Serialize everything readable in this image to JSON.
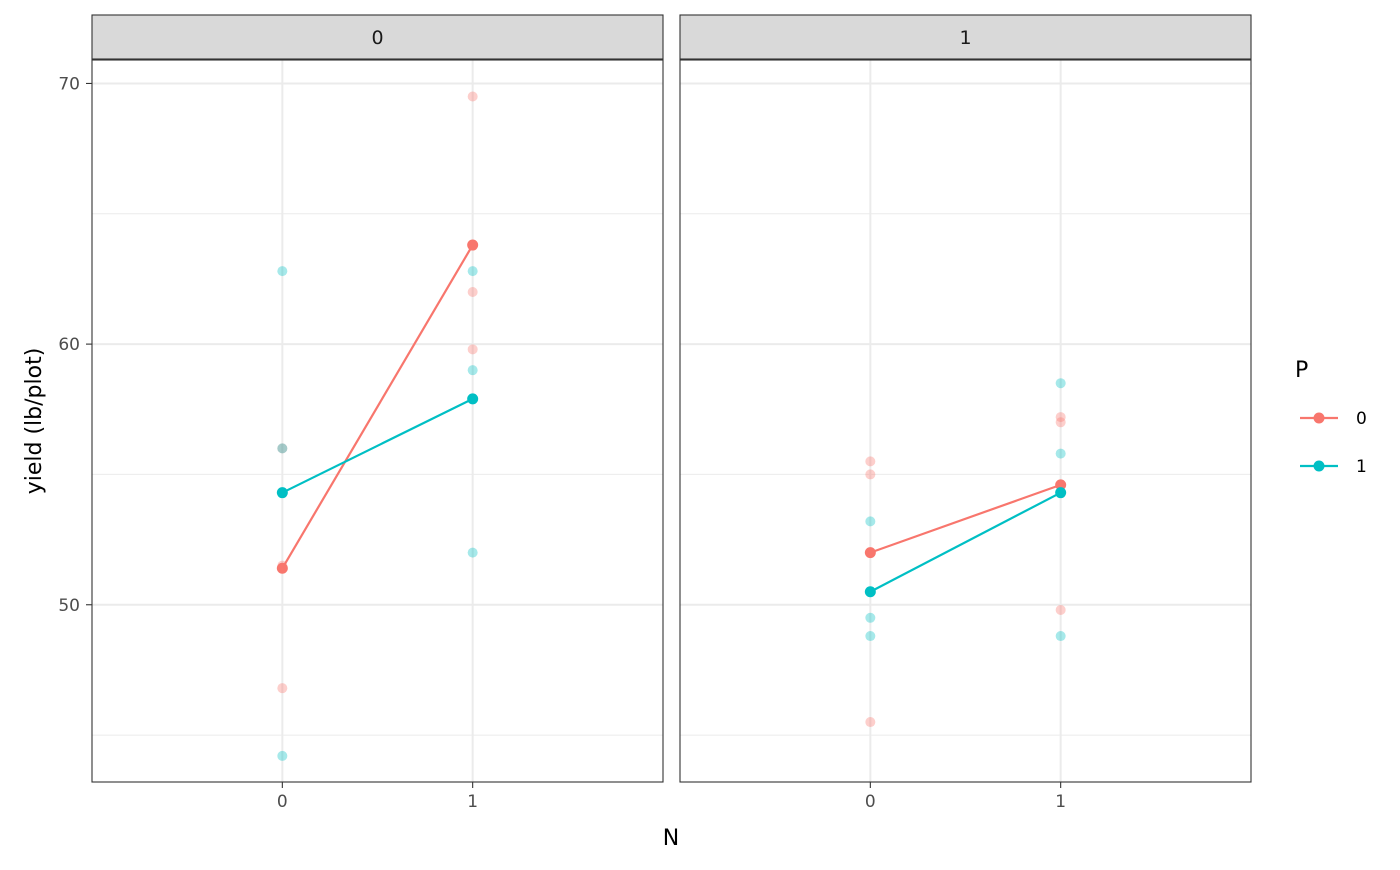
{
  "chart_data": {
    "type": "scatter",
    "facet_variable": "P",
    "facet_labels": [
      "0",
      "1"
    ],
    "xlabel": "N",
    "ylabel": "yield (lb/plot)",
    "x_categories": [
      "0",
      "1"
    ],
    "y_ticks": [
      50,
      60,
      70
    ],
    "ylim": [
      43.2,
      70.9
    ],
    "grid": true,
    "legend": {
      "title": "P",
      "position": "right",
      "entries": [
        {
          "label": "0",
          "color": "#F8766D"
        },
        {
          "label": "1",
          "color": "#00BFC4"
        }
      ]
    },
    "panels": [
      {
        "strip": "0",
        "raw_points": [
          {
            "group": "0",
            "x": "0",
            "y": 51.5
          },
          {
            "group": "0",
            "x": "0",
            "y": 46.8
          },
          {
            "group": "0",
            "x": "0",
            "y": 56.0
          },
          {
            "group": "0",
            "x": "1",
            "y": 69.5
          },
          {
            "group": "0",
            "x": "1",
            "y": 62.0
          },
          {
            "group": "0",
            "x": "1",
            "y": 59.8
          },
          {
            "group": "1",
            "x": "0",
            "y": 62.8
          },
          {
            "group": "1",
            "x": "0",
            "y": 56.0
          },
          {
            "group": "1",
            "x": "0",
            "y": 44.2
          },
          {
            "group": "1",
            "x": "1",
            "y": 62.8
          },
          {
            "group": "1",
            "x": "1",
            "y": 59.0
          },
          {
            "group": "1",
            "x": "1",
            "y": 52.0
          }
        ],
        "series": [
          {
            "name": "0",
            "values": [
              51.4,
              63.8
            ]
          },
          {
            "name": "1",
            "values": [
              54.3,
              57.9
            ]
          }
        ]
      },
      {
        "strip": "1",
        "raw_points": [
          {
            "group": "0",
            "x": "0",
            "y": 55.5
          },
          {
            "group": "0",
            "x": "0",
            "y": 55.0
          },
          {
            "group": "0",
            "x": "0",
            "y": 45.5
          },
          {
            "group": "0",
            "x": "1",
            "y": 57.2
          },
          {
            "group": "0",
            "x": "1",
            "y": 57.0
          },
          {
            "group": "0",
            "x": "1",
            "y": 49.8
          },
          {
            "group": "1",
            "x": "0",
            "y": 53.2
          },
          {
            "group": "1",
            "x": "0",
            "y": 49.5
          },
          {
            "group": "1",
            "x": "0",
            "y": 48.8
          },
          {
            "group": "1",
            "x": "1",
            "y": 58.5
          },
          {
            "group": "1",
            "x": "1",
            "y": 55.8
          },
          {
            "group": "1",
            "x": "1",
            "y": 48.8
          }
        ],
        "series": [
          {
            "name": "0",
            "values": [
              52.0,
              54.6
            ]
          },
          {
            "name": "1",
            "values": [
              50.5,
              54.3
            ]
          }
        ]
      }
    ]
  }
}
